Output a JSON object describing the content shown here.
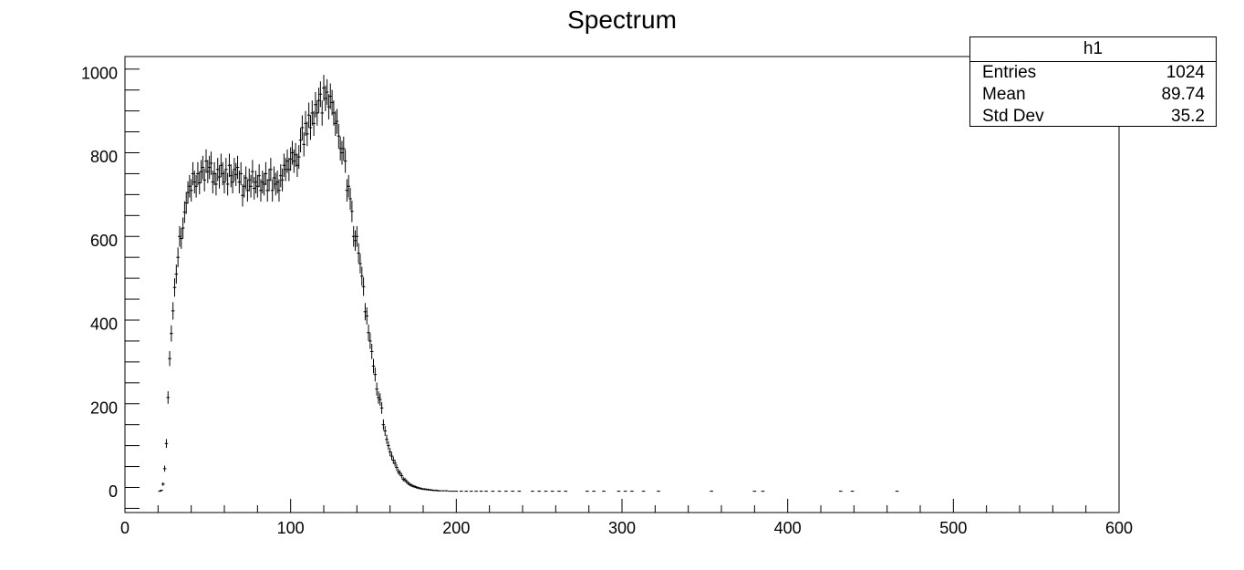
{
  "chart_data": {
    "type": "histogram",
    "title": "Spectrum",
    "xlabel": "",
    "ylabel": "",
    "xlim": [
      0,
      600
    ],
    "ylim": [
      -50,
      1040
    ],
    "x_ticks": [
      0,
      100,
      200,
      300,
      400,
      500,
      600
    ],
    "y_ticks": [
      0,
      200,
      400,
      600,
      800,
      1000
    ],
    "grid": false,
    "error_bars": true,
    "points": [
      [
        21,
        1
      ],
      [
        22,
        3
      ],
      [
        23,
        18
      ],
      [
        24,
        55
      ],
      [
        25,
        115
      ],
      [
        26,
        225
      ],
      [
        27,
        318
      ],
      [
        28,
        378
      ],
      [
        29,
        432
      ],
      [
        30,
        488
      ],
      [
        31,
        520
      ],
      [
        32,
        560
      ],
      [
        33,
        610
      ],
      [
        34,
        605
      ],
      [
        35,
        630
      ],
      [
        36,
        668
      ],
      [
        37,
        690
      ],
      [
        38,
        715
      ],
      [
        39,
        730
      ],
      [
        40,
        720
      ],
      [
        41,
        760
      ],
      [
        42,
        740
      ],
      [
        43,
        730
      ],
      [
        44,
        760
      ],
      [
        45,
        738
      ],
      [
        46,
        765
      ],
      [
        47,
        775
      ],
      [
        48,
        745
      ],
      [
        49,
        790
      ],
      [
        50,
        765
      ],
      [
        51,
        775
      ],
      [
        52,
        785
      ],
      [
        53,
        740
      ],
      [
        54,
        760
      ],
      [
        55,
        735
      ],
      [
        56,
        770
      ],
      [
        57,
        752
      ],
      [
        58,
        780
      ],
      [
        59,
        760
      ],
      [
        60,
        740
      ],
      [
        61,
        770
      ],
      [
        62,
        735
      ],
      [
        63,
        780
      ],
      [
        64,
        755
      ],
      [
        65,
        740
      ],
      [
        66,
        770
      ],
      [
        67,
        758
      ],
      [
        68,
        775
      ],
      [
        69,
        740
      ],
      [
        70,
        760
      ],
      [
        71,
        708
      ],
      [
        72,
        730
      ],
      [
        73,
        750
      ],
      [
        74,
        720
      ],
      [
        75,
        745
      ],
      [
        76,
        730
      ],
      [
        77,
        765
      ],
      [
        78,
        725
      ],
      [
        79,
        740
      ],
      [
        80,
        730
      ],
      [
        81,
        755
      ],
      [
        82,
        720
      ],
      [
        83,
        740
      ],
      [
        84,
        735
      ],
      [
        85,
        760
      ],
      [
        86,
        720
      ],
      [
        87,
        745
      ],
      [
        88,
        770
      ],
      [
        89,
        720
      ],
      [
        90,
        750
      ],
      [
        91,
        735
      ],
      [
        92,
        740
      ],
      [
        93,
        720
      ],
      [
        94,
        755
      ],
      [
        95,
        745
      ],
      [
        96,
        780
      ],
      [
        97,
        770
      ],
      [
        98,
        790
      ],
      [
        99,
        770
      ],
      [
        100,
        795
      ],
      [
        101,
        810
      ],
      [
        102,
        790
      ],
      [
        103,
        805
      ],
      [
        104,
        780
      ],
      [
        105,
        800
      ],
      [
        106,
        840
      ],
      [
        107,
        870
      ],
      [
        108,
        830
      ],
      [
        109,
        880
      ],
      [
        110,
        855
      ],
      [
        111,
        900
      ],
      [
        112,
        870
      ],
      [
        113,
        905
      ],
      [
        114,
        880
      ],
      [
        115,
        925
      ],
      [
        116,
        905
      ],
      [
        117,
        935
      ],
      [
        118,
        950
      ],
      [
        119,
        905
      ],
      [
        120,
        965
      ],
      [
        121,
        940
      ],
      [
        122,
        955
      ],
      [
        123,
        920
      ],
      [
        124,
        945
      ],
      [
        125,
        930
      ],
      [
        126,
        905
      ],
      [
        127,
        880
      ],
      [
        128,
        885
      ],
      [
        129,
        850
      ],
      [
        130,
        820
      ],
      [
        131,
        810
      ],
      [
        132,
        820
      ],
      [
        133,
        790
      ],
      [
        134,
        720
      ],
      [
        135,
        730
      ],
      [
        136,
        700
      ],
      [
        137,
        670
      ],
      [
        138,
        610
      ],
      [
        139,
        600
      ],
      [
        140,
        610
      ],
      [
        141,
        570
      ],
      [
        142,
        545
      ],
      [
        143,
        515
      ],
      [
        144,
        490
      ],
      [
        145,
        430
      ],
      [
        146,
        420
      ],
      [
        147,
        380
      ],
      [
        148,
        360
      ],
      [
        149,
        335
      ],
      [
        150,
        300
      ],
      [
        151,
        280
      ],
      [
        152,
        245
      ],
      [
        153,
        225
      ],
      [
        154,
        220
      ],
      [
        155,
        200
      ],
      [
        156,
        160
      ],
      [
        157,
        145
      ],
      [
        158,
        125
      ],
      [
        159,
        110
      ],
      [
        160,
        95
      ],
      [
        161,
        85
      ],
      [
        162,
        75
      ],
      [
        163,
        68
      ],
      [
        164,
        58
      ],
      [
        165,
        48
      ],
      [
        166,
        44
      ],
      [
        167,
        38
      ],
      [
        168,
        30
      ],
      [
        169,
        28
      ],
      [
        170,
        24
      ],
      [
        171,
        20
      ],
      [
        172,
        17
      ],
      [
        173,
        15
      ],
      [
        174,
        13
      ],
      [
        175,
        12
      ],
      [
        176,
        10
      ],
      [
        177,
        9
      ],
      [
        178,
        8
      ],
      [
        179,
        7
      ],
      [
        180,
        6
      ],
      [
        181,
        6
      ],
      [
        182,
        5
      ],
      [
        183,
        5
      ],
      [
        184,
        4
      ],
      [
        185,
        4
      ],
      [
        186,
        3
      ],
      [
        187,
        3
      ],
      [
        188,
        3
      ],
      [
        189,
        2
      ],
      [
        190,
        2
      ],
      [
        192,
        2
      ],
      [
        194,
        2
      ],
      [
        196,
        1
      ],
      [
        198,
        1
      ],
      [
        200,
        1
      ],
      [
        203,
        1
      ],
      [
        206,
        1
      ],
      [
        209,
        1
      ],
      [
        212,
        1
      ],
      [
        215,
        1
      ],
      [
        218,
        1
      ],
      [
        222,
        1
      ],
      [
        226,
        1
      ],
      [
        230,
        1
      ],
      [
        234,
        1
      ],
      [
        238,
        1
      ],
      [
        246,
        1
      ],
      [
        250,
        1
      ],
      [
        254,
        1
      ],
      [
        258,
        1
      ],
      [
        262,
        1
      ],
      [
        266,
        1
      ],
      [
        279,
        1
      ],
      [
        283,
        1
      ],
      [
        289,
        1
      ],
      [
        298,
        1
      ],
      [
        302,
        1
      ],
      [
        306,
        1
      ],
      [
        313,
        1
      ],
      [
        322,
        1
      ],
      [
        354,
        1
      ],
      [
        380,
        1
      ],
      [
        385,
        1
      ],
      [
        432,
        1
      ],
      [
        439,
        1
      ],
      [
        466,
        1
      ]
    ]
  },
  "stats_box": {
    "title": "h1",
    "rows": [
      {
        "label": "Entries",
        "value": "1024"
      },
      {
        "label": "Mean",
        "value": "89.74"
      },
      {
        "label": "Std Dev",
        "value": "35.2"
      }
    ]
  }
}
